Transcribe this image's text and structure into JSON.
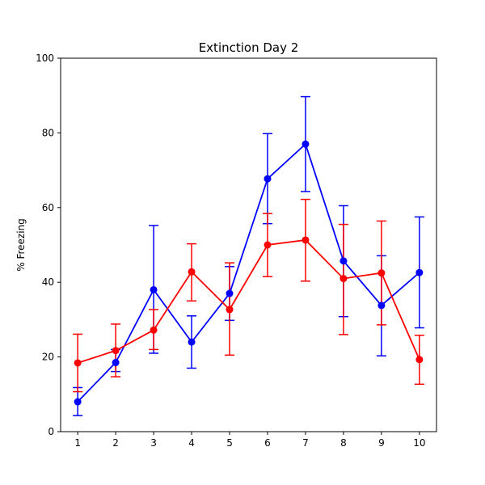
{
  "chart_data": {
    "type": "line",
    "title": "Extinction Day 2",
    "xlabel": "",
    "ylabel": "% Freezing",
    "x": [
      1,
      2,
      3,
      4,
      5,
      6,
      7,
      8,
      9,
      10
    ],
    "x_ticks": [
      "1",
      "2",
      "3",
      "4",
      "5",
      "6",
      "7",
      "8",
      "9",
      "10"
    ],
    "y_ticks": [
      "0",
      "20",
      "40",
      "60",
      "80",
      "100"
    ],
    "xlim": [
      0.55,
      10.45
    ],
    "ylim": [
      0,
      100
    ],
    "grid": false,
    "legend": "none",
    "series": [
      {
        "color": "#0000ff",
        "values": [
          8.0,
          18.5,
          38.0,
          24.0,
          37.0,
          67.7,
          77.0,
          45.7,
          33.8,
          42.6
        ],
        "err_low": [
          4.3,
          16.1,
          21.0,
          17.0,
          29.8,
          55.7,
          64.3,
          30.8,
          20.3,
          27.8
        ],
        "err_high": [
          11.8,
          22.0,
          55.2,
          31.0,
          44.2,
          79.8,
          89.7,
          60.5,
          47.1,
          57.5
        ]
      },
      {
        "color": "#ff0000",
        "values": [
          18.4,
          21.7,
          27.2,
          42.8,
          32.7,
          50.0,
          51.3,
          41.0,
          42.5,
          19.3
        ],
        "err_low": [
          10.7,
          14.7,
          22.0,
          35.0,
          20.5,
          41.5,
          40.3,
          26.0,
          28.6,
          12.7
        ],
        "err_high": [
          26.1,
          28.8,
          32.7,
          50.3,
          45.2,
          58.4,
          62.2,
          55.5,
          56.4,
          25.8
        ]
      }
    ]
  }
}
